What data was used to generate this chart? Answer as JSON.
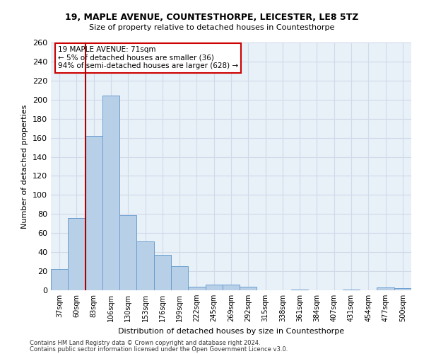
{
  "title1": "19, MAPLE AVENUE, COUNTESTHORPE, LEICESTER, LE8 5TZ",
  "title2": "Size of property relative to detached houses in Countesthorpe",
  "xlabel": "Distribution of detached houses by size in Countesthorpe",
  "ylabel": "Number of detached properties",
  "footnote1": "Contains HM Land Registry data © Crown copyright and database right 2024.",
  "footnote2": "Contains public sector information licensed under the Open Government Licence v3.0.",
  "bar_labels": [
    "37sqm",
    "60sqm",
    "83sqm",
    "106sqm",
    "130sqm",
    "153sqm",
    "176sqm",
    "199sqm",
    "222sqm",
    "245sqm",
    "269sqm",
    "292sqm",
    "315sqm",
    "338sqm",
    "361sqm",
    "384sqm",
    "407sqm",
    "431sqm",
    "454sqm",
    "477sqm",
    "500sqm"
  ],
  "bar_values": [
    22,
    76,
    162,
    204,
    79,
    51,
    37,
    25,
    4,
    6,
    6,
    4,
    0,
    0,
    1,
    0,
    0,
    1,
    0,
    3,
    2
  ],
  "bar_color": "#b8cfe8",
  "bar_edge_color": "#6a9fd0",
  "vline_color": "#aa0000",
  "vline_x": 1.5,
  "annotation_text": "19 MAPLE AVENUE: 71sqm\n← 5% of detached houses are smaller (36)\n94% of semi-detached houses are larger (628) →",
  "annotation_box_color": "#ffffff",
  "annotation_box_edge": "#cc0000",
  "ylim": [
    0,
    260
  ],
  "yticks": [
    0,
    20,
    40,
    60,
    80,
    100,
    120,
    140,
    160,
    180,
    200,
    220,
    240,
    260
  ],
  "bg_color": "#e8f0f8",
  "grid_color": "#d0dae8"
}
